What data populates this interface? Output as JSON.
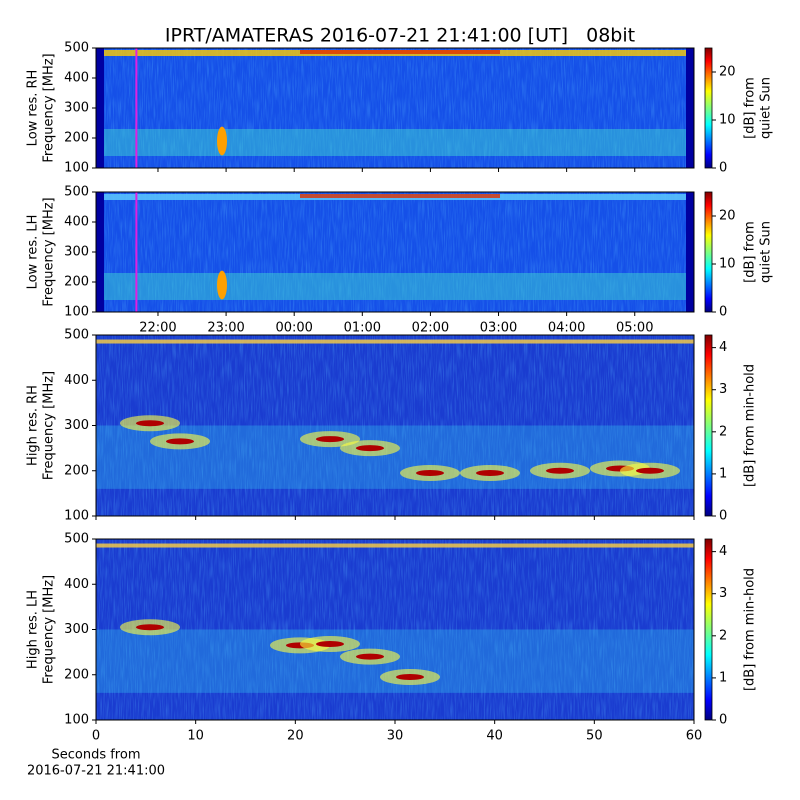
{
  "title": "IPRT/AMATERAS 2016-07-21 21:41:00 [UT]   08bit",
  "chart_data": [
    {
      "type": "heatmap",
      "ylabel": [
        "Low res. RH",
        "Frequency [MHz]"
      ],
      "ylim": [
        100,
        500
      ],
      "yticks": [
        100,
        200,
        300,
        400,
        500
      ],
      "colorbar_label": [
        "[dB] from",
        "quiet Sun"
      ],
      "clim": [
        0,
        25
      ],
      "cticks": [
        0,
        10,
        20
      ],
      "marker": 21.683,
      "marker_color": "#e020e0"
    },
    {
      "type": "heatmap",
      "ylabel": [
        "Low res. LH",
        "Frequency [MHz]"
      ],
      "ylim": [
        100,
        500
      ],
      "yticks": [
        100,
        200,
        300,
        400,
        500
      ],
      "colorbar_label": [
        "[dB] from",
        "quiet Sun"
      ],
      "clim": [
        0,
        25
      ],
      "cticks": [
        0,
        10,
        20
      ],
      "marker": 21.683,
      "marker_color": "#e020e0",
      "xlim": [
        21.09,
        29.87
      ],
      "xticks": [
        {
          "value": 22,
          "label": "22:00"
        },
        {
          "value": 23,
          "label": "23:00"
        },
        {
          "value": 24,
          "label": "00:00"
        },
        {
          "value": 25,
          "label": "01:00"
        },
        {
          "value": 26,
          "label": "02:00"
        },
        {
          "value": 27,
          "label": "03:00"
        },
        {
          "value": 28,
          "label": "04:00"
        },
        {
          "value": 29,
          "label": "05:00"
        }
      ]
    },
    {
      "type": "heatmap",
      "ylabel": [
        "High res. RH",
        "Frequency [MHz]"
      ],
      "ylim": [
        100,
        500
      ],
      "yticks": [
        100,
        200,
        300,
        400,
        500
      ],
      "colorbar_label": [
        "[dB] from min-hold"
      ],
      "clim": [
        0,
        4.3
      ],
      "cticks": [
        0,
        1,
        2,
        3,
        4
      ]
    },
    {
      "type": "heatmap",
      "ylabel": [
        "High res. LH",
        "Frequency [MHz]"
      ],
      "ylim": [
        100,
        500
      ],
      "yticks": [
        100,
        200,
        300,
        400,
        500
      ],
      "colorbar_label": [
        "[dB] from min-hold"
      ],
      "clim": [
        0,
        4.3
      ],
      "cticks": [
        0,
        1,
        2,
        3,
        4
      ],
      "xlim": [
        0,
        60
      ],
      "xticks": [
        0,
        10,
        20,
        30,
        40,
        50,
        60
      ],
      "xlabel": [
        "Seconds from",
        "2016-07-21 21:41:00"
      ]
    }
  ]
}
